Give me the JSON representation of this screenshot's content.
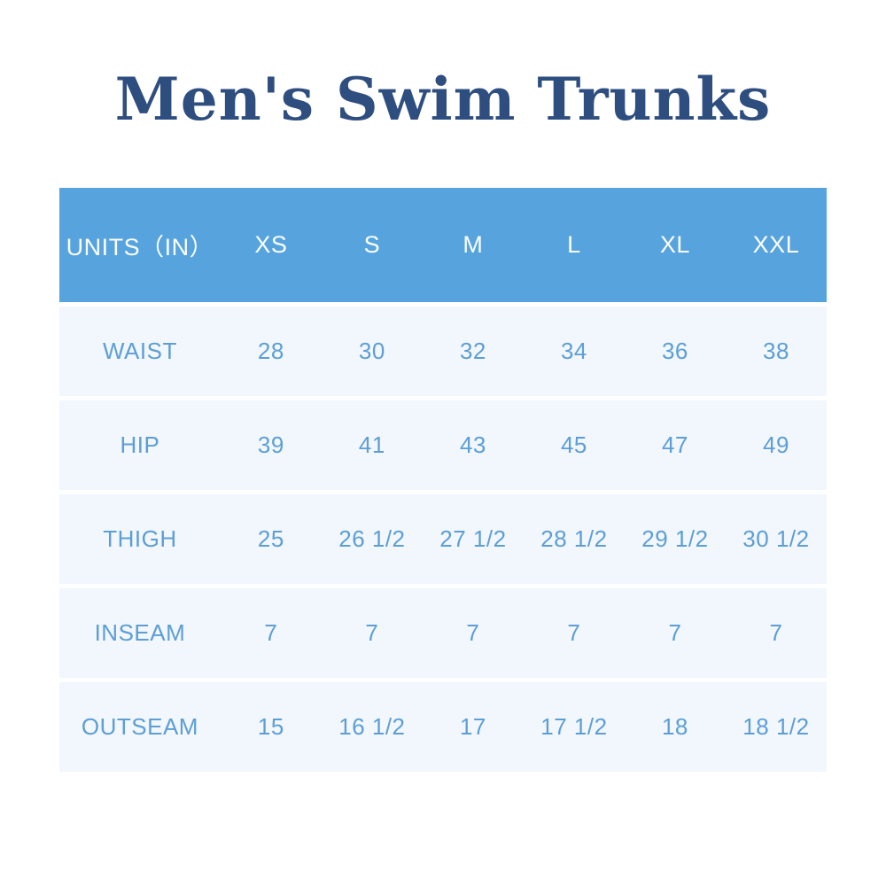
{
  "title": "Men's Swim Trunks",
  "colors": {
    "title_text": "#2e4e80",
    "header_bg": "#57a3de",
    "header_text": "#fbfdff",
    "row_bg": "#f1f7fc",
    "row_text": "#5d9ed6",
    "page_bg": "#ffffff"
  },
  "chart_data": {
    "type": "table",
    "title": "Men's Swim Trunks",
    "units": "IN",
    "columns": [
      "UNITS（IN）",
      "XS",
      "S",
      "M",
      "L",
      "XL",
      "XXL"
    ],
    "rows": [
      {
        "label": "WAIST",
        "values": [
          "28",
          "30",
          "32",
          "34",
          "36",
          "38"
        ]
      },
      {
        "label": "HIP",
        "values": [
          "39",
          "41",
          "43",
          "45",
          "47",
          "49"
        ]
      },
      {
        "label": "THIGH",
        "values": [
          "25",
          "26 1/2",
          "27 1/2",
          "28 1/2",
          "29 1/2",
          "30 1/2"
        ]
      },
      {
        "label": "INSEAM",
        "values": [
          "7",
          "7",
          "7",
          "7",
          "7",
          "7"
        ]
      },
      {
        "label": "OUTSEAM",
        "values": [
          "15",
          "16 1/2",
          "17",
          "17 1/2",
          "18",
          "18 1/2"
        ]
      }
    ]
  }
}
